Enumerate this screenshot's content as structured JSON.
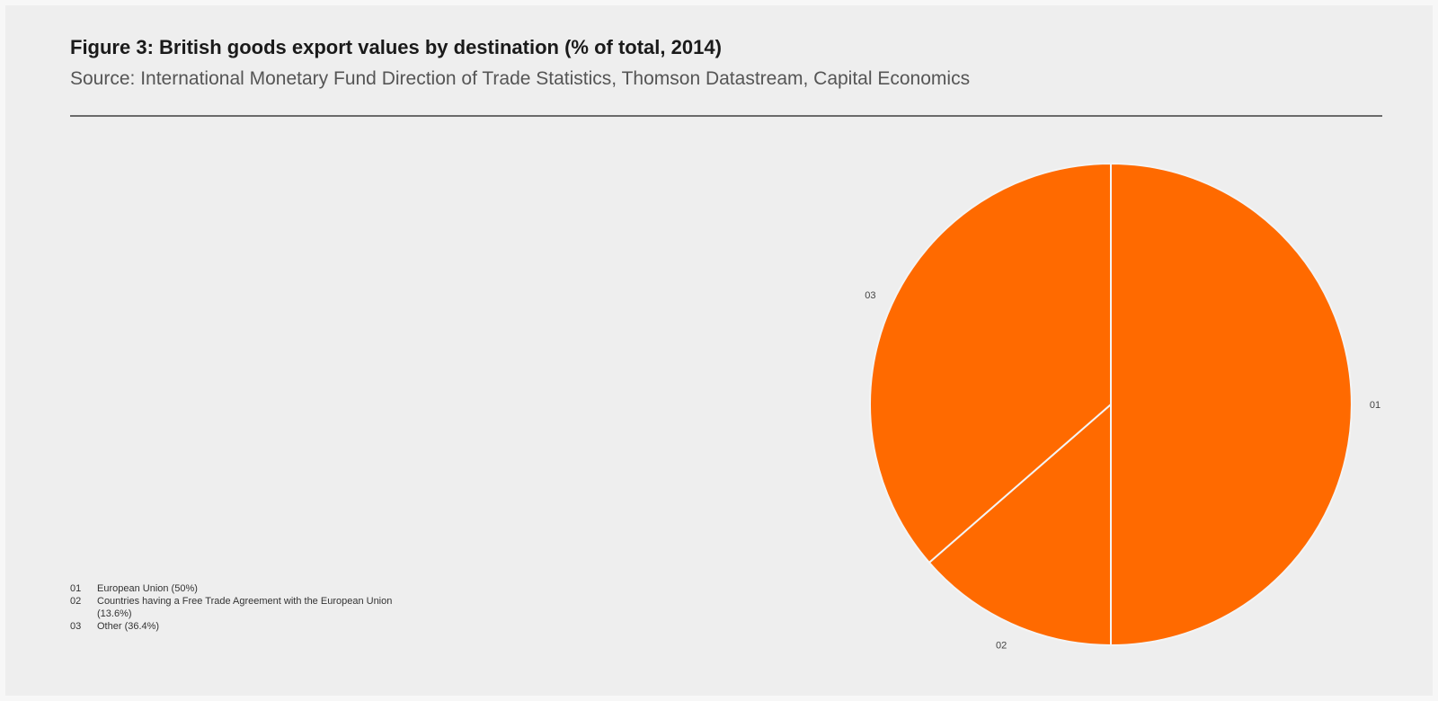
{
  "title": "Figure 3: British goods export values by destination (% of total, 2014)",
  "subtitle": "Source: International Monetary Fund Direction of Trade Statistics, Thomson Datastream, Capital Economics",
  "colors": {
    "slice": "#ff6a00",
    "separator": "#f4f4f4",
    "background": "#eeeeee"
  },
  "legend": [
    {
      "num": "01",
      "text": "European Union (50%)"
    },
    {
      "num": "02",
      "text": "Countries having a Free Trade Agreement with the European Union (13.6%)"
    },
    {
      "num": "03",
      "text": "Other (36.4%)"
    }
  ],
  "chart_data": {
    "type": "pie",
    "title": "Figure 3: British goods export values by destination (% of total, 2014)",
    "categories": [
      "01",
      "02",
      "03"
    ],
    "values": [
      50,
      13.6,
      36.4
    ],
    "legend_position": "bottom-left"
  }
}
